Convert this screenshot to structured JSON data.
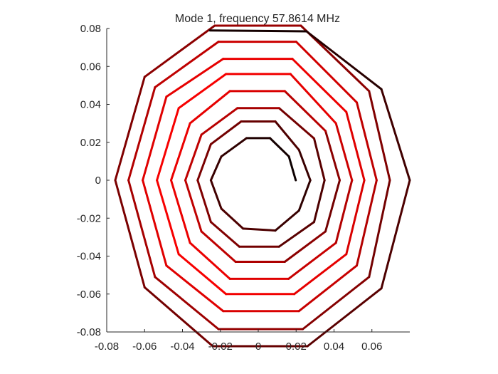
{
  "chart_data": {
    "type": "line",
    "title": "Mode 1, frequency 57.8614 MHz",
    "xlabel": "",
    "ylabel": "",
    "xlim": [
      -0.08,
      0.08
    ],
    "ylim": [
      -0.08,
      0.08
    ],
    "x_ticks": [
      -0.08,
      -0.06,
      -0.04,
      -0.02,
      0,
      0.02,
      0.04,
      0.06
    ],
    "y_ticks": [
      -0.08,
      -0.06,
      -0.04,
      -0.02,
      0,
      0.02,
      0.04,
      0.06,
      0.08
    ],
    "x_tick_labels": [
      "-0.08",
      "-0.06",
      "-0.04",
      "-0.02",
      "0",
      "0.02",
      "0.04",
      "0.06"
    ],
    "y_tick_labels": [
      "-0.08",
      "-0.06",
      "-0.04",
      "-0.02",
      "0",
      "0.02",
      "0.04",
      "0.06",
      "0.08"
    ],
    "grid": false,
    "line_color_scale": [
      "#000000",
      "#ff0000"
    ],
    "series": [
      {
        "points": [
          [
            0.0198,
            0.0
          ],
          [
            0.0162,
            0.0125
          ],
          [
            0.0062,
            0.0222
          ],
          [
            -0.0062,
            0.0222
          ],
          [
            -0.0195,
            0.0125
          ],
          [
            -0.025,
            0.0
          ],
          [
            -0.0195,
            -0.015
          ],
          [
            -0.008,
            -0.0255
          ],
          [
            0.009,
            -0.0265
          ],
          [
            0.0215,
            -0.016
          ],
          [
            0.0275,
            0.0
          ],
          [
            0.0215,
            0.016
          ],
          [
            0.009,
            0.031
          ],
          [
            -0.009,
            0.031
          ],
          [
            -0.025,
            0.019
          ],
          [
            -0.032,
            0.0
          ],
          [
            -0.025,
            -0.022
          ],
          [
            -0.01,
            -0.035
          ],
          [
            0.011,
            -0.035
          ],
          [
            0.0295,
            -0.022
          ],
          [
            0.035,
            0.0
          ],
          [
            0.0295,
            0.022
          ],
          [
            0.011,
            0.038
          ],
          [
            -0.011,
            0.038
          ],
          [
            -0.03,
            0.024
          ],
          [
            -0.0385,
            0.0
          ],
          [
            -0.03,
            -0.027
          ],
          [
            -0.012,
            -0.043
          ],
          [
            0.014,
            -0.043
          ],
          [
            0.0355,
            -0.027
          ],
          [
            0.043,
            0.0
          ],
          [
            0.0355,
            0.026
          ],
          [
            0.014,
            0.047
          ],
          [
            -0.015,
            0.047
          ],
          [
            -0.036,
            0.03
          ],
          [
            -0.046,
            0.0
          ],
          [
            -0.036,
            -0.033
          ],
          [
            -0.015,
            -0.052
          ],
          [
            0.016,
            -0.052
          ],
          [
            0.041,
            -0.033
          ],
          [
            0.0495,
            0.0
          ],
          [
            0.041,
            0.03
          ],
          [
            0.017,
            0.056
          ],
          [
            -0.017,
            0.056
          ],
          [
            -0.042,
            0.038
          ],
          [
            -0.0535,
            0.0
          ],
          [
            -0.042,
            -0.039
          ],
          [
            -0.017,
            -0.06
          ],
          [
            0.019,
            -0.06
          ],
          [
            0.0465,
            -0.039
          ],
          [
            0.056,
            0.0
          ],
          [
            0.0465,
            0.036
          ],
          [
            0.018,
            0.064
          ],
          [
            -0.0185,
            0.064
          ],
          [
            -0.0485,
            0.044
          ],
          [
            -0.061,
            0.0
          ],
          [
            -0.0485,
            -0.045
          ],
          [
            -0.0185,
            -0.069
          ],
          [
            0.0215,
            -0.069
          ],
          [
            0.052,
            -0.045
          ],
          [
            0.0625,
            0.0
          ],
          [
            0.052,
            0.041
          ],
          [
            0.02,
            0.073
          ],
          [
            -0.021,
            0.073
          ],
          [
            -0.0545,
            0.049
          ],
          [
            -0.0685,
            0.0
          ],
          [
            -0.0545,
            -0.051
          ],
          [
            -0.021,
            -0.0785
          ],
          [
            0.0235,
            -0.0785
          ],
          [
            0.0585,
            -0.051
          ],
          [
            0.0695,
            0.0
          ],
          [
            0.0585,
            0.047
          ],
          [
            0.0225,
            0.0815
          ],
          [
            -0.023,
            0.0815
          ],
          [
            -0.06,
            0.0545
          ],
          [
            -0.0755,
            0.0
          ],
          [
            -0.06,
            -0.0565
          ],
          [
            -0.024,
            -0.0875
          ],
          [
            0.026,
            -0.0875
          ],
          [
            0.065,
            -0.057
          ],
          [
            0.08,
            0.0
          ],
          [
            0.065,
            0.048
          ],
          [
            0.0255,
            0.0785
          ],
          [
            -0.0255,
            0.079
          ]
        ],
        "intensity": [
          0.05,
          0.08,
          0.12,
          0.18,
          0.22,
          0.26,
          0.3,
          0.3,
          0.22,
          0.18,
          0.22,
          0.3,
          0.4,
          0.45,
          0.48,
          0.5,
          0.5,
          0.45,
          0.35,
          0.3,
          0.35,
          0.45,
          0.65,
          0.72,
          0.75,
          0.75,
          0.75,
          0.68,
          0.55,
          0.45,
          0.55,
          0.72,
          0.85,
          0.9,
          0.92,
          0.92,
          0.92,
          0.88,
          0.78,
          0.7,
          0.8,
          0.9,
          0.95,
          0.97,
          0.97,
          0.97,
          0.97,
          0.95,
          0.9,
          0.85,
          0.88,
          0.93,
          0.92,
          0.9,
          0.88,
          0.88,
          0.88,
          0.85,
          0.78,
          0.7,
          0.75,
          0.82,
          0.8,
          0.75,
          0.7,
          0.65,
          0.62,
          0.58,
          0.52,
          0.45,
          0.5,
          0.55,
          0.6,
          0.55,
          0.5,
          0.48,
          0.45,
          0.4,
          0.35,
          0.3,
          0.25,
          0.15,
          0.08
        ]
      }
    ]
  }
}
